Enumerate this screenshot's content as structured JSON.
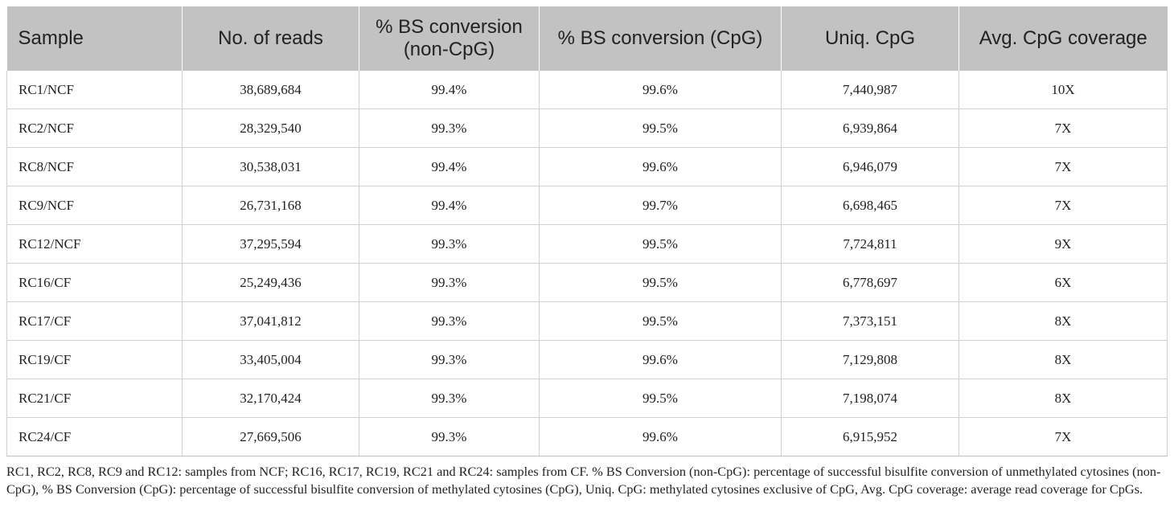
{
  "table": {
    "headers": [
      "Sample",
      "No. of reads",
      "% BS conversion (non-CpG)",
      "% BS conversion (CpG)",
      "Uniq. CpG",
      "Avg. CpG coverage"
    ],
    "rows": [
      [
        "RC1/NCF",
        "38,689,684",
        "99.4%",
        "99.6%",
        "7,440,987",
        "10X"
      ],
      [
        "RC2/NCF",
        "28,329,540",
        "99.3%",
        "99.5%",
        "6,939,864",
        "7X"
      ],
      [
        "RC8/NCF",
        "30,538,031",
        "99.4%",
        "99.6%",
        "6,946,079",
        "7X"
      ],
      [
        "RC9/NCF",
        "26,731,168",
        "99.4%",
        "99.7%",
        "6,698,465",
        "7X"
      ],
      [
        "RC12/NCF",
        "37,295,594",
        "99.3%",
        "99.5%",
        "7,724,811",
        "9X"
      ],
      [
        "RC16/CF",
        "25,249,436",
        "99.3%",
        "99.5%",
        "6,778,697",
        "6X"
      ],
      [
        "RC17/CF",
        "37,041,812",
        "99.3%",
        "99.5%",
        "7,373,151",
        "8X"
      ],
      [
        "RC19/CF",
        "33,405,004",
        "99.3%",
        "99.6%",
        "7,129,808",
        "8X"
      ],
      [
        "RC21/CF",
        "32,170,424",
        "99.3%",
        "99.5%",
        "7,198,074",
        "8X"
      ],
      [
        "RC24/CF",
        "27,669,506",
        "99.3%",
        "99.6%",
        "6,915,952",
        "7X"
      ]
    ]
  },
  "footnote": "RC1, RC2, RC8, RC9 and RC12: samples from NCF; RC16, RC17, RC19, RC21 and RC24: samples from CF. % BS Conversion (non-CpG): percentage of successful bisulfite conversion of unmethylated cytosines (non-CpG), % BS Conversion (CpG): percentage of successful bisulfite conversion of methylated cytosines (CpG), Uniq. CpG: methylated cytosines exclusive of CpG, Avg. CpG coverage: average read coverage for CpGs."
}
